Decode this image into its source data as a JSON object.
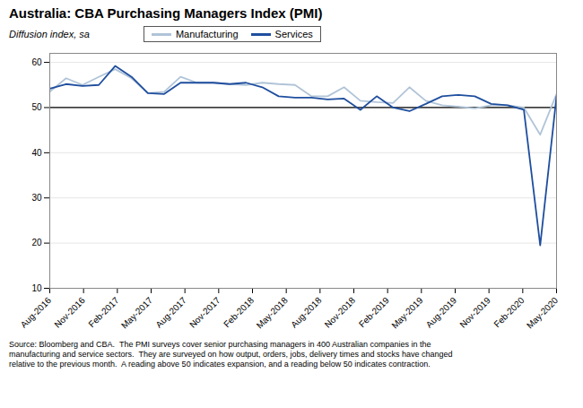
{
  "chart_data": {
    "type": "line",
    "title": "Australia: CBA Purchasing Managers Index (PMI)",
    "subtitle": "Diffusion index, sa",
    "source_text": "Source: Bloomberg and CBA.  The PMI surveys cover senior purchasing managers in 400 Australian companies in the\nmanufacturing and service sectors.  They are surveyed on how output, orders, jobs, delivery times and stocks have changed\nrelative to the previous month.  A reading above 50 indicates expansion, and a reading below 50 indicates contraction.",
    "series": [
      {
        "name": "Manufacturing",
        "color": "#b0c4d8",
        "values": [
          53.5,
          56.5,
          55.0,
          56.8,
          58.5,
          56.5,
          53.2,
          53.5,
          56.8,
          55.5,
          55.5,
          55.2,
          55.0,
          55.5,
          55.2,
          55.0,
          52.5,
          52.5,
          54.5,
          51.5,
          51.2,
          51.0,
          54.5,
          51.5,
          50.5,
          50.2,
          49.8,
          50.5,
          50.5,
          50.0,
          44.0,
          53.0
        ]
      },
      {
        "name": "Services",
        "color": "#1f4e9e",
        "values": [
          54.2,
          55.2,
          54.8,
          55.0,
          59.2,
          56.8,
          53.2,
          53.0,
          55.5,
          55.5,
          55.5,
          55.2,
          55.5,
          54.5,
          52.5,
          52.2,
          52.2,
          51.8,
          52.0,
          49.5,
          52.5,
          50.0,
          49.2,
          50.8,
          52.5,
          52.8,
          52.5,
          50.8,
          50.5,
          49.5,
          19.5,
          52.5
        ]
      }
    ],
    "xlim": [
      0,
      31
    ],
    "xticks": [
      {
        "value": 0,
        "label": "Aug-2016"
      },
      {
        "value": 2.066666666666667,
        "label": "Nov-2016"
      },
      {
        "value": 4.133333333333333,
        "label": "Feb-2017"
      },
      {
        "value": 6.2,
        "label": "May-2017"
      },
      {
        "value": 8.266666666666667,
        "label": "Aug-2017"
      },
      {
        "value": 10.333333333333334,
        "label": "Nov-2017"
      },
      {
        "value": 12.4,
        "label": "Feb-2018"
      },
      {
        "value": 14.466666666666667,
        "label": "May-2018"
      },
      {
        "value": 16.533333333333335,
        "label": "Aug-2018"
      },
      {
        "value": 18.6,
        "label": "Nov-2018"
      },
      {
        "value": 20.666666666666668,
        "label": "Feb-2019"
      },
      {
        "value": 22.733333333333334,
        "label": "May-2019"
      },
      {
        "value": 24.8,
        "label": "Aug-2019"
      },
      {
        "value": 26.866666666666667,
        "label": "Nov-2019"
      },
      {
        "value": 28.933333333333334,
        "label": "Feb-2020"
      },
      {
        "value": 31,
        "label": "May-2020"
      }
    ],
    "ylim": [
      10,
      62
    ],
    "yticks": [
      10,
      20,
      30,
      40,
      50,
      60
    ],
    "reference_line": 50,
    "grid": true,
    "legend": "top"
  }
}
